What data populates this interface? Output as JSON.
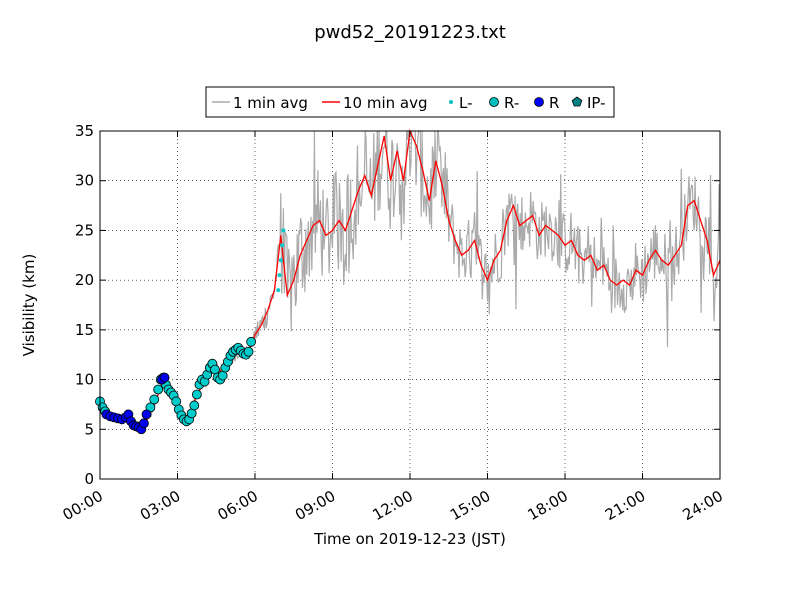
{
  "chart_data": {
    "type": "line",
    "title": "pwd52_20191223.txt",
    "xlabel": "Time on 2019-12-23 (JST)",
    "ylabel": "Visibility (km)",
    "xlim_hours": [
      0,
      24
    ],
    "ylim": [
      0,
      35
    ],
    "x_ticks": [
      "00:00",
      "03:00",
      "06:00",
      "09:00",
      "12:00",
      "15:00",
      "18:00",
      "21:00",
      "24:00"
    ],
    "y_ticks": [
      0,
      5,
      10,
      15,
      20,
      25,
      30,
      35
    ],
    "grid": true,
    "legend_position": "top-center",
    "legend": [
      {
        "label": "1 min avg",
        "style": "line",
        "color": "#aaaaaa"
      },
      {
        "label": "10 min avg",
        "style": "line",
        "color": "#ff0000"
      },
      {
        "label": "L-",
        "style": "dot",
        "color": "#00bfbf"
      },
      {
        "label": "R-",
        "style": "circle",
        "color": "#00bfbf"
      },
      {
        "label": "R",
        "style": "circle",
        "color": "#0000ff"
      },
      {
        "label": "IP-",
        "style": "pentagon",
        "color": "#008080"
      }
    ],
    "series_10min": {
      "name": "10 min avg",
      "color": "#ff0000",
      "x_hours": [
        0,
        0.25,
        0.5,
        0.75,
        1.0,
        1.25,
        1.5,
        1.75,
        2.0,
        2.25,
        2.5,
        2.75,
        3.0,
        3.25,
        3.5,
        3.75,
        4.0,
        4.25,
        4.5,
        4.75,
        5.0,
        5.25,
        5.5,
        5.75,
        6.0,
        6.25,
        6.5,
        6.75,
        7.0,
        7.1,
        7.25,
        7.5,
        7.75,
        8.0,
        8.25,
        8.5,
        8.75,
        9.0,
        9.25,
        9.5,
        9.75,
        10.0,
        10.25,
        10.5,
        10.75,
        11.0,
        11.25,
        11.5,
        11.75,
        12.0,
        12.25,
        12.5,
        12.75,
        13.0,
        13.25,
        13.5,
        13.75,
        14.0,
        14.25,
        14.5,
        14.75,
        15.0,
        15.25,
        15.5,
        15.75,
        16.0,
        16.25,
        16.5,
        16.75,
        17.0,
        17.25,
        17.5,
        17.75,
        18.0,
        18.25,
        18.5,
        18.75,
        19.0,
        19.25,
        19.5,
        19.75,
        20.0,
        20.25,
        20.5,
        20.75,
        21.0,
        21.25,
        21.5,
        21.75,
        22.0,
        22.25,
        22.5,
        22.75,
        23.0,
        23.25,
        23.5,
        23.75,
        24.0
      ],
      "y_km": [
        7.5,
        6.5,
        6.2,
        6.0,
        6.2,
        5.5,
        5.3,
        5.6,
        7.0,
        8.5,
        10.0,
        9.0,
        7.0,
        6.0,
        6.5,
        8.5,
        9.5,
        10.5,
        11.5,
        10.5,
        11.5,
        12.5,
        13.0,
        12.8,
        14.5,
        15.5,
        17.0,
        19.0,
        24.5,
        22.0,
        18.5,
        20.0,
        22.5,
        24.0,
        25.5,
        26.0,
        24.5,
        25.0,
        26.0,
        25.0,
        27.0,
        29.0,
        30.5,
        28.5,
        31.5,
        34.5,
        30.0,
        33.0,
        30.0,
        35.0,
        33.5,
        31.0,
        28.0,
        32.0,
        29.5,
        26.0,
        24.0,
        22.5,
        23.0,
        24.0,
        21.5,
        20.0,
        22.0,
        23.0,
        26.0,
        27.5,
        25.5,
        26.0,
        26.5,
        24.5,
        25.5,
        25.0,
        24.5,
        23.5,
        24.0,
        22.5,
        22.0,
        22.5,
        21.0,
        21.5,
        20.0,
        19.5,
        20.0,
        19.5,
        21.0,
        20.5,
        22.0,
        23.0,
        22.0,
        21.5,
        22.5,
        23.5,
        27.5,
        28.0,
        26.0,
        24.0,
        20.5,
        22.0
      ]
    },
    "series_1min": {
      "name": "1 min avg",
      "color": "#aaaaaa",
      "note_shape": "noisy about 10 min avg; spread ~0.5 km before 06:00, ~3-6 km after 07:00"
    },
    "markers": {
      "R-": {
        "color": "#00cccc",
        "x_hours": [
          0,
          0.1,
          0.2,
          1.95,
          2.1,
          2.25,
          2.35,
          2.45,
          2.55,
          2.65,
          2.75,
          2.85,
          2.95,
          3.05,
          3.15,
          3.25,
          3.35,
          3.45,
          3.55,
          3.65,
          3.75,
          3.85,
          3.95,
          4.05,
          4.15,
          4.25,
          4.35,
          4.45,
          4.55,
          4.65,
          4.75,
          4.85,
          4.95,
          5.05,
          5.15,
          5.25,
          5.35,
          5.45,
          5.55,
          5.65,
          5.75,
          5.85
        ],
        "y_km": [
          7.8,
          7.2,
          6.8,
          7.2,
          8.0,
          9.0,
          10.0,
          10.2,
          9.5,
          9.0,
          8.7,
          8.4,
          7.8,
          7.0,
          6.4,
          6.0,
          5.8,
          6.0,
          6.6,
          7.4,
          8.5,
          9.5,
          10.0,
          9.8,
          10.5,
          11.2,
          11.6,
          11.0,
          10.2,
          10.0,
          10.4,
          11.2,
          11.8,
          12.4,
          12.8,
          13.0,
          13.2,
          12.9,
          12.6,
          12.5,
          12.8,
          13.8
        ]
      },
      "R": {
        "color": "#0000ee",
        "x_hours": [
          0.25,
          0.4,
          0.55,
          0.7,
          0.85,
          1.0,
          1.1,
          1.2,
          1.3,
          1.4,
          1.5,
          1.6,
          1.7,
          1.8,
          2.4,
          2.5
        ],
        "y_km": [
          6.5,
          6.3,
          6.2,
          6.1,
          6.0,
          6.2,
          6.5,
          5.8,
          5.4,
          5.3,
          5.2,
          5.0,
          5.6,
          6.5,
          10.0,
          10.2
        ]
      },
      "L-": {
        "color": "#00cccc",
        "x_hours": [
          6.9,
          6.95,
          7.0,
          7.05,
          7.1
        ],
        "y_km": [
          19.0,
          20.5,
          22.0,
          23.5,
          25.0
        ]
      }
    }
  }
}
